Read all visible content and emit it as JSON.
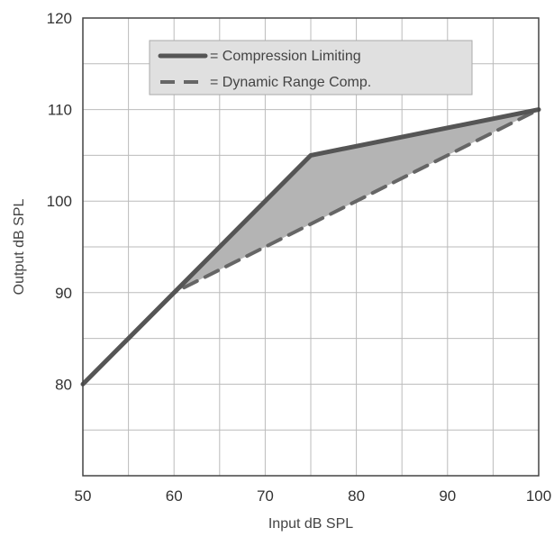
{
  "chart_data": {
    "type": "line",
    "xlabel": "Input dB SPL",
    "ylabel": "Output dB SPL",
    "xlim": [
      50,
      100
    ],
    "ylim": [
      70,
      120
    ],
    "x_ticks": [
      50,
      60,
      70,
      80,
      90,
      100
    ],
    "y_ticks": [
      80,
      90,
      100,
      110,
      120
    ],
    "grid": true,
    "legend_position": "top-center",
    "shaded_region": "between series",
    "series": [
      {
        "name": "= Compression Limiting",
        "style": "solid",
        "color": "#555555",
        "x": [
          50,
          60,
          75,
          100
        ],
        "y": [
          80,
          90,
          105,
          110
        ]
      },
      {
        "name": "= Dynamic Range Comp.",
        "style": "dashed",
        "color": "#666666",
        "x": [
          50,
          60,
          100
        ],
        "y": [
          80,
          90,
          110
        ]
      }
    ],
    "colors": {
      "fill": "#b4b4b4",
      "grid": "#bbbbbb",
      "legend_bg": "#e0e0e0"
    }
  }
}
